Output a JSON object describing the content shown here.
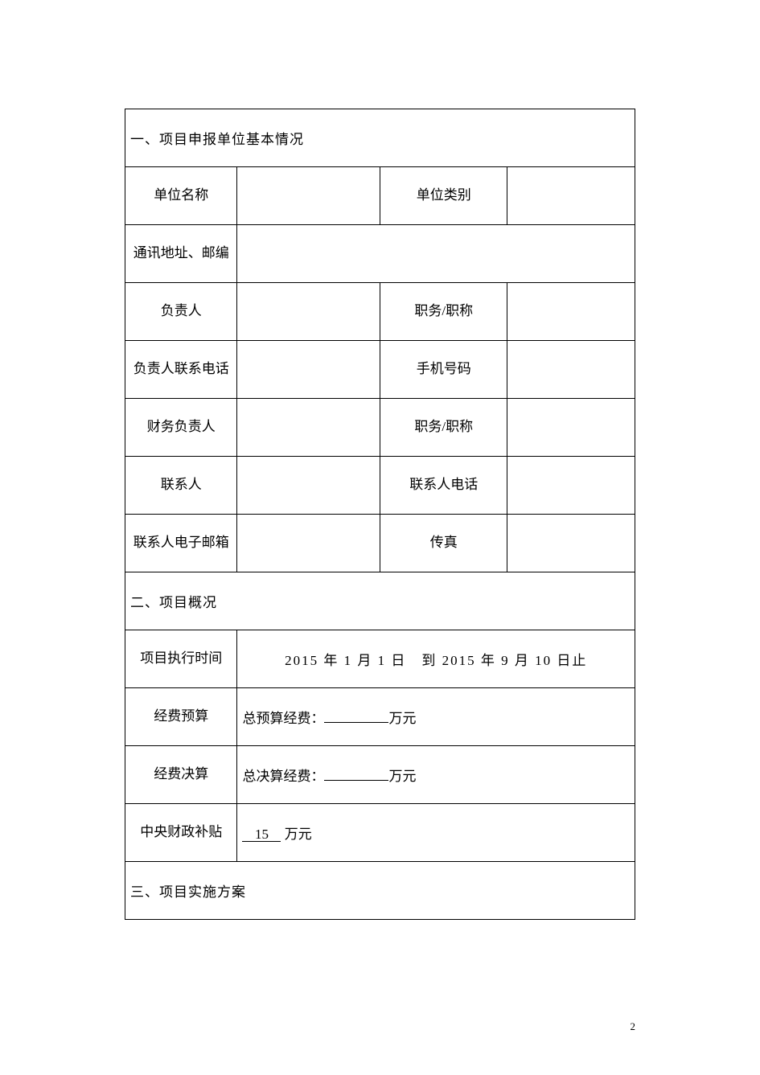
{
  "section1": {
    "title": "一、项目申报单位基本情况",
    "rows": {
      "unit_name_label": "单位名称",
      "unit_name_value": "",
      "unit_type_label": "单位类别",
      "unit_type_value": "",
      "address_label": "通讯地址、邮编",
      "address_value": "",
      "leader_label": "负责人",
      "leader_value": "",
      "leader_title_label": "职务/职称",
      "leader_title_value": "",
      "leader_phone_label": "负责人联系电话",
      "leader_phone_value": "",
      "mobile_label": "手机号码",
      "mobile_value": "",
      "finance_leader_label": "财务负责人",
      "finance_leader_value": "",
      "finance_title_label": "职务/职称",
      "finance_title_value": "",
      "contact_label": "联系人",
      "contact_value": "",
      "contact_phone_label": "联系人电话",
      "contact_phone_value": "",
      "email_label": "联系人电子邮箱",
      "email_value": "",
      "fax_label": "传真",
      "fax_value": ""
    }
  },
  "section2": {
    "title": "二、项目概况",
    "exec_time_label": "项目执行时间",
    "exec_time_value": "2015 年 1 月 1 日 到 2015 年 9 月 10 日止",
    "budget_label": "经费预算",
    "budget_prefix": "总预算经费：",
    "budget_value": "",
    "budget_unit": "万元",
    "final_label": "经费决算",
    "final_prefix": "总决算经费：",
    "final_value": "",
    "final_unit": "万元",
    "subsidy_label": "中央财政补贴",
    "subsidy_value": "15",
    "subsidy_unit": "万元"
  },
  "section3": {
    "title": "三、项目实施方案"
  },
  "page_number": "2"
}
